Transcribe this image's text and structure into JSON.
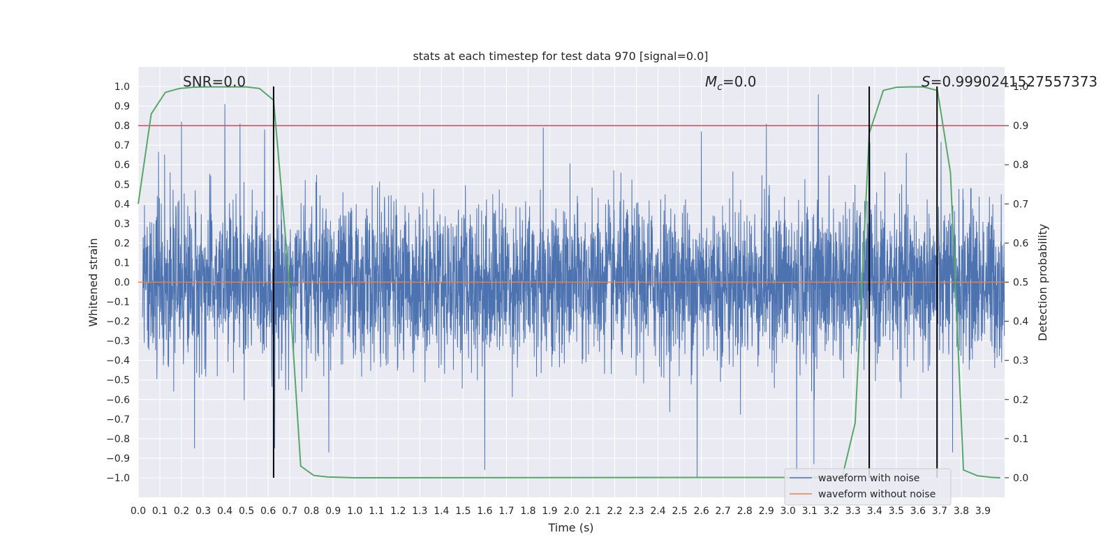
{
  "chart_data": {
    "type": "line",
    "title": "stats at each timestep for test data 970 [signal=0.0]",
    "xlabel": "Time (s)",
    "ylabel": "Whitened strain",
    "y2label": "Detection probability",
    "xlim": [
      0.0,
      4.0
    ],
    "ylim": [
      -1.1,
      1.1
    ],
    "y2lim": [
      -0.05,
      1.05
    ],
    "x_ticks": [
      0.0,
      0.1,
      0.2,
      0.3,
      0.4,
      0.5,
      0.6,
      0.7,
      0.8,
      0.9,
      1.0,
      1.1,
      1.2,
      1.3,
      1.4,
      1.5,
      1.6,
      1.7,
      1.8,
      1.9,
      2.0,
      2.1,
      2.2,
      2.3,
      2.4,
      2.5,
      2.6,
      2.7,
      2.8,
      2.9,
      3.0,
      3.1,
      3.2,
      3.3,
      3.4,
      3.5,
      3.6,
      3.7,
      3.8,
      3.9
    ],
    "y_ticks": [
      1.0,
      0.9,
      0.8,
      0.7,
      0.6,
      0.5,
      0.4,
      0.3,
      0.2,
      0.1,
      0.0,
      -0.1,
      -0.2,
      -0.3,
      -0.4,
      -0.5,
      -0.6,
      -0.7,
      -0.8,
      -0.9,
      -1.0
    ],
    "y2_ticks": [
      1.0,
      0.9,
      0.8,
      0.7,
      0.6,
      0.5,
      0.4,
      0.3,
      0.2,
      0.1,
      0.0
    ],
    "grid": true,
    "legend_position": "lower right",
    "annotations": {
      "snr": "SNR=0.0",
      "mc_symbol": "M",
      "mc_sub": "c",
      "mc_value": "=0.0",
      "s_symbol": "S",
      "s_value": "=0.9990241527557373"
    },
    "threshold": {
      "y2": 0.9,
      "color": "#c44e52"
    },
    "vertical_lines": [
      0.625,
      3.375,
      3.688
    ],
    "vertical_line_span": [
      -1.0,
      1.0
    ],
    "series": [
      {
        "name": "waveform with noise",
        "color": "#4c72b0",
        "description_values": "dense whitened noise, amplitude mostly within ±0.4, peaks near ±0.9",
        "peaks": [
          [
            0.2,
            0.82
          ],
          [
            0.4,
            0.91
          ],
          [
            0.47,
            0.81
          ],
          [
            1.87,
            0.79
          ],
          [
            2.9,
            0.81
          ],
          [
            3.14,
            0.96
          ],
          [
            2.6,
            0.77
          ],
          [
            0.26,
            -0.85
          ],
          [
            0.88,
            -0.87
          ],
          [
            1.6,
            -0.96
          ],
          [
            2.58,
            -1.0
          ],
          [
            3.12,
            -0.93
          ],
          [
            3.04,
            -0.97
          ],
          [
            0.63,
            -0.85
          ],
          [
            3.76,
            -0.87
          ]
        ]
      },
      {
        "name": "waveform without noise",
        "color": "#dd8452",
        "x": [
          0.0,
          4.0
        ],
        "y": [
          0.0,
          0.0
        ]
      },
      {
        "name": "",
        "axis": "right",
        "color": "#55a868",
        "x": [
          0.0,
          0.06,
          0.125,
          0.19,
          0.25,
          0.31,
          0.375,
          0.44,
          0.5,
          0.56,
          0.625,
          0.69,
          0.75,
          0.81,
          0.875,
          0.94,
          1.0,
          3.25,
          3.31,
          3.375,
          3.44,
          3.5,
          3.56,
          3.625,
          3.69,
          3.75,
          3.81,
          3.875,
          3.94,
          3.98
        ],
        "y": [
          0.7,
          0.93,
          0.985,
          0.995,
          0.998,
          0.999,
          0.999,
          0.999,
          0.999,
          0.995,
          0.965,
          0.55,
          0.03,
          0.006,
          0.002,
          0.001,
          0.0,
          0.001,
          0.14,
          0.88,
          0.99,
          0.998,
          0.999,
          0.999,
          0.99,
          0.78,
          0.02,
          0.005,
          0.001,
          0.0
        ]
      }
    ]
  }
}
